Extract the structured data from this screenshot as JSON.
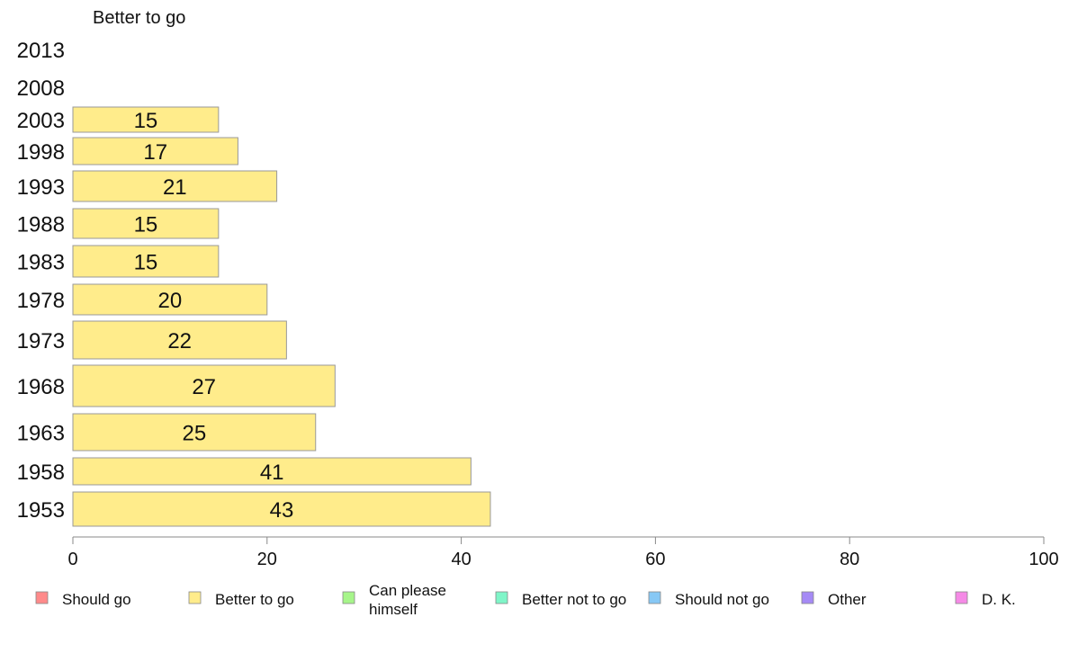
{
  "chart_data": {
    "type": "bar",
    "orientation": "horizontal",
    "title": "Better to go",
    "series_name": "Better to go",
    "categories": [
      "2013",
      "2008",
      "2003",
      "1998",
      "1993",
      "1988",
      "1983",
      "1978",
      "1973",
      "1968",
      "1963",
      "1958",
      "1953"
    ],
    "values": [
      null,
      null,
      15,
      17,
      21,
      15,
      15,
      20,
      22,
      27,
      25,
      41,
      43
    ],
    "data_labels": [
      "",
      "",
      "15",
      "17",
      "21",
      "15",
      "15",
      "20",
      "22",
      "27",
      "25",
      "41",
      "43"
    ],
    "xlim": [
      0,
      100
    ],
    "xticks": [
      "0",
      "20",
      "40",
      "60",
      "80",
      "100"
    ],
    "bar_color": "#ffec8b",
    "bar_edge_color": "#999999",
    "legend": [
      {
        "label": "Should go",
        "color": "#ff8a8a"
      },
      {
        "label": "Better to go",
        "color": "#ffec8b"
      },
      {
        "label": "Can please himself",
        "color": "#a6f58a"
      },
      {
        "label": "Better not to go",
        "color": "#7ff5c8"
      },
      {
        "label": "Should not go",
        "color": "#87c8f5"
      },
      {
        "label": "Other",
        "color": "#a58af5"
      },
      {
        "label": "D. K.",
        "color": "#f58ae6"
      }
    ],
    "legend_position": "bottom"
  }
}
